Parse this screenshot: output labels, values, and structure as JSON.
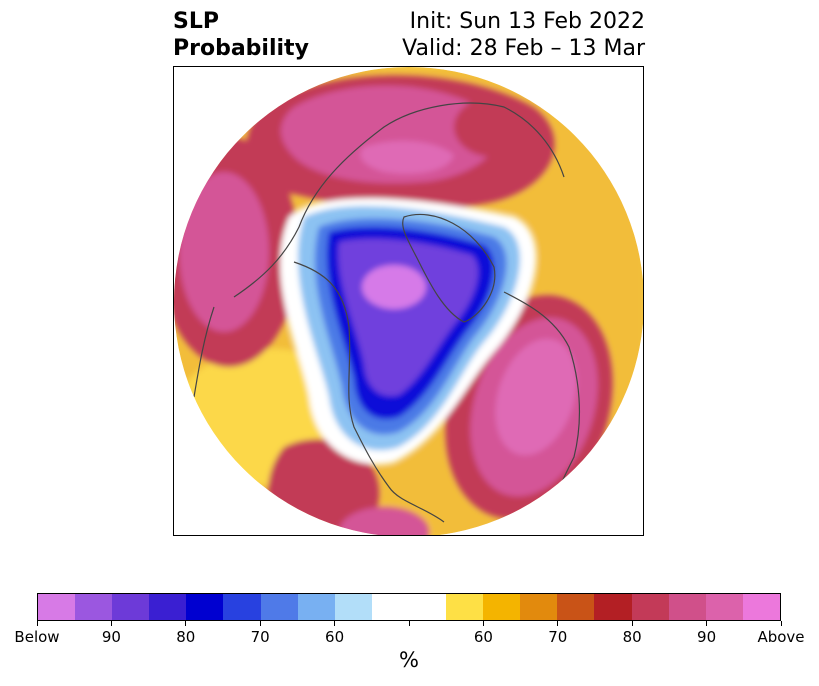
{
  "title": {
    "left_line1": "SLP",
    "left_line2": "Probability",
    "right_line1": "Init: Sun 13 Feb 2022",
    "right_line2": "Valid: 28 Feb – 13 Mar"
  },
  "colorbar": {
    "colors": [
      "#d77ae6",
      "#9b57e0",
      "#6d3ad8",
      "#3a1fd2",
      "#0000d0",
      "#2841e0",
      "#4f7ae8",
      "#78b0f2",
      "#b2def9",
      "#ffffff",
      "#ffffff",
      "#fee045",
      "#f4b400",
      "#e28a0d",
      "#c95317",
      "#b31f24",
      "#c33a58",
      "#d0508a",
      "#dc62ab",
      "#ec78dc"
    ],
    "tick_labels": [
      "Below",
      "90",
      "80",
      "70",
      "60",
      "",
      "60",
      "70",
      "80",
      "90",
      "Above"
    ],
    "unit": "%"
  },
  "map": {
    "projection": "north-polar-stereographic",
    "field": "SLP probability",
    "colors": {
      "ocean_ring_a": "#fcd84a",
      "ocean_ring_b": "#e08d14",
      "warm_high": "#c23a56",
      "warm_peak": "#d45497",
      "warm_max": "#df6ab5",
      "cold_edge": "#8cc2f2",
      "cold_mid": "#4b7ae6",
      "cold_deep": "#0a10d8",
      "cold_core": "#7040dd",
      "cold_max": "#d67ae8",
      "coast": "#444444"
    }
  }
}
